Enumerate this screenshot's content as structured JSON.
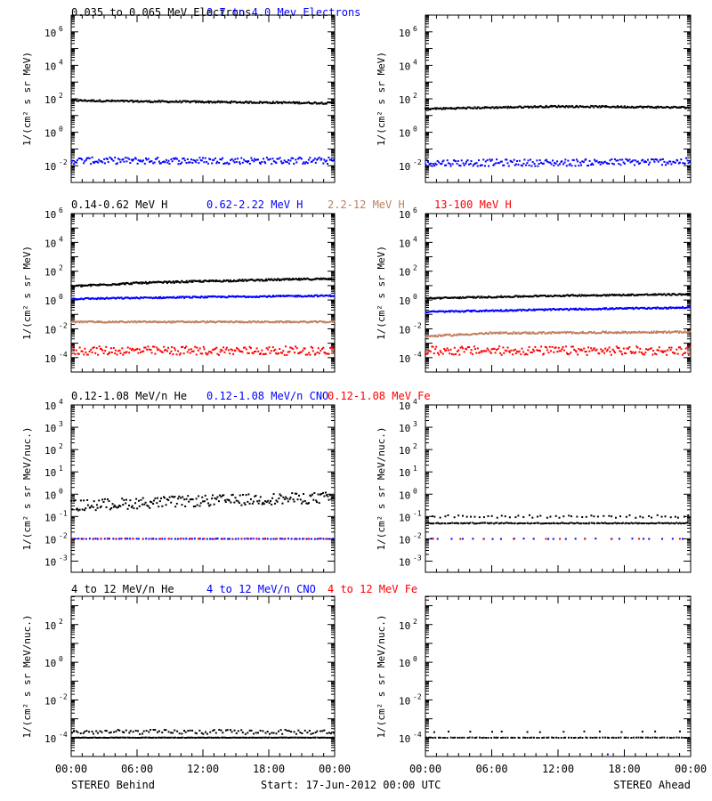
{
  "colors": {
    "black": "#000000",
    "blue": "#0000ff",
    "brown": "#c08060",
    "red": "#ff0000"
  },
  "footer": {
    "left": "STEREO Behind",
    "center": "Start: 17-Jun-2012 00:00 UTC",
    "right": "STEREO Ahead"
  },
  "x_axis": {
    "ticks": [
      "00:00",
      "06:00",
      "12:00",
      "18:00",
      "00:00"
    ],
    "range_hours": [
      0,
      24
    ]
  },
  "rows": [
    {
      "id": "electrons",
      "titles": [
        {
          "text": "0.035 to 0.065 MeV Electrons",
          "color": "black"
        },
        {
          "text": "0.7 to 4.0 Mev Electrons",
          "color": "blue"
        }
      ],
      "ylabel": "1/(cm² s sr MeV)",
      "y_log_range": [
        -3,
        7
      ],
      "y_ticks": [
        {
          "exp": 6,
          "label": "6"
        },
        {
          "exp": 4,
          "label": "4"
        },
        {
          "exp": 2,
          "label": "2"
        },
        {
          "exp": 0,
          "label": "0"
        },
        {
          "exp": -2,
          "label": "-2"
        }
      ]
    },
    {
      "id": "protons",
      "titles": [
        {
          "text": "0.14-0.62 MeV H",
          "color": "black"
        },
        {
          "text": "0.62-2.22 MeV H",
          "color": "blue"
        },
        {
          "text": "2.2-12 MeV H",
          "color": "brown"
        },
        {
          "text": "13-100 MeV H",
          "color": "red"
        }
      ],
      "ylabel": "1/(cm² s sr MeV)",
      "y_log_range": [
        -5,
        6
      ],
      "y_ticks": [
        {
          "exp": 6,
          "label": "6"
        },
        {
          "exp": 4,
          "label": "4"
        },
        {
          "exp": 2,
          "label": "2"
        },
        {
          "exp": 0,
          "label": "0"
        },
        {
          "exp": -2,
          "label": "-2"
        },
        {
          "exp": -4,
          "label": "-4"
        }
      ]
    },
    {
      "id": "heavy_low",
      "titles": [
        {
          "text": "0.12-1.08 MeV/n He",
          "color": "black"
        },
        {
          "text": "0.12-1.08 MeV/n CNO",
          "color": "blue"
        },
        {
          "text": "0.12-1.08 MeV Fe",
          "color": "red"
        }
      ],
      "ylabel": "1/(cm² s sr MeV/nuc.)",
      "y_log_range": [
        -3.5,
        4
      ],
      "y_ticks": [
        {
          "exp": 4,
          "label": "4"
        },
        {
          "exp": 3,
          "label": "3"
        },
        {
          "exp": 2,
          "label": "2"
        },
        {
          "exp": 1,
          "label": "1"
        },
        {
          "exp": 0,
          "label": "0"
        },
        {
          "exp": -1,
          "label": "-1"
        },
        {
          "exp": -2,
          "label": "-2"
        },
        {
          "exp": -3,
          "label": "-3"
        }
      ]
    },
    {
      "id": "heavy_high",
      "titles": [
        {
          "text": "4 to 12 MeV/n He",
          "color": "black"
        },
        {
          "text": "4 to 12 MeV/n CNO",
          "color": "blue"
        },
        {
          "text": "4 to 12 MeV Fe",
          "color": "red"
        }
      ],
      "ylabel": "1/(cm² s sr MeV/nuc.)",
      "y_log_range": [
        -5,
        3.5
      ],
      "y_ticks": [
        {
          "exp": 2,
          "label": "2"
        },
        {
          "exp": 0,
          "label": "0"
        },
        {
          "exp": -2,
          "label": "-2"
        },
        {
          "exp": -4,
          "label": "-4"
        }
      ]
    }
  ],
  "chart_data": [
    {
      "type": "scatter",
      "row": "electrons",
      "panel": "behind",
      "x_unit": "hours",
      "y_scale": "log",
      "ylim": [
        0.001,
        10000000
      ],
      "series": [
        {
          "color": "black",
          "x": [
            0,
            6,
            12,
            18,
            24
          ],
          "y": [
            80,
            70,
            65,
            60,
            55
          ],
          "spread": 0.05,
          "density": 260
        },
        {
          "color": "blue",
          "x": [
            0,
            12,
            24
          ],
          "y": [
            0.02,
            0.02,
            0.02
          ],
          "spread": 0.2,
          "density": 220
        }
      ]
    },
    {
      "type": "scatter",
      "row": "electrons",
      "panel": "ahead",
      "x_unit": "hours",
      "y_scale": "log",
      "ylim": [
        0.001,
        10000000
      ],
      "series": [
        {
          "color": "black",
          "x": [
            0,
            6,
            12,
            18,
            24
          ],
          "y": [
            25,
            30,
            35,
            33,
            30
          ],
          "spread": 0.05,
          "density": 260
        },
        {
          "color": "blue",
          "x": [
            0,
            12,
            24
          ],
          "y": [
            0.015,
            0.015,
            0.018
          ],
          "spread": 0.2,
          "density": 220
        }
      ]
    },
    {
      "type": "scatter",
      "row": "protons",
      "panel": "behind",
      "x_unit": "hours",
      "y_scale": "log",
      "ylim": [
        1e-05,
        1000000
      ],
      "series": [
        {
          "color": "black",
          "x": [
            0,
            6,
            12,
            18,
            24
          ],
          "y": [
            9,
            15,
            20,
            25,
            30
          ],
          "spread": 0.06,
          "density": 280
        },
        {
          "color": "blue",
          "x": [
            0,
            12,
            24
          ],
          "y": [
            1.2,
            1.6,
            2
          ],
          "spread": 0.05,
          "density": 260
        },
        {
          "color": "brown",
          "x": [
            0,
            12,
            24
          ],
          "y": [
            0.03,
            0.03,
            0.03
          ],
          "spread": 0.05,
          "density": 260
        },
        {
          "color": "red",
          "x": [
            0,
            12,
            24
          ],
          "y": [
            0.0003,
            0.0003,
            0.0003
          ],
          "spread": 0.3,
          "density": 220
        }
      ]
    },
    {
      "type": "scatter",
      "row": "protons",
      "panel": "ahead",
      "x_unit": "hours",
      "y_scale": "log",
      "ylim": [
        1e-05,
        1000000
      ],
      "series": [
        {
          "color": "black",
          "x": [
            0,
            12,
            24
          ],
          "y": [
            1.3,
            2,
            2.5
          ],
          "spread": 0.05,
          "density": 260
        },
        {
          "color": "blue",
          "x": [
            0,
            12,
            24
          ],
          "y": [
            0.15,
            0.22,
            0.3
          ],
          "spread": 0.05,
          "density": 260
        },
        {
          "color": "brown",
          "x": [
            0,
            6,
            24
          ],
          "y": [
            0.003,
            0.005,
            0.006
          ],
          "spread": 0.06,
          "density": 260
        },
        {
          "color": "red",
          "x": [
            0,
            12,
            24
          ],
          "y": [
            0.0003,
            0.0003,
            0.0003
          ],
          "spread": 0.3,
          "density": 220
        }
      ]
    },
    {
      "type": "scatter",
      "row": "heavy_low",
      "panel": "behind",
      "x_unit": "hours",
      "y_scale": "log",
      "ylim": [
        0.0003,
        10000
      ],
      "series": [
        {
          "color": "black",
          "x": [
            0,
            6,
            12,
            18,
            24
          ],
          "y": [
            0.3,
            0.4,
            0.5,
            0.6,
            0.7
          ],
          "spread": 0.25,
          "density": 220
        },
        {
          "color": "blue",
          "x": [
            0,
            12,
            24
          ],
          "y": [
            0.01,
            0.01,
            0.01
          ],
          "spread": 0.01,
          "density": 90
        },
        {
          "color": "red",
          "x": [
            0,
            12,
            24
          ],
          "y": [
            0.01,
            0.01,
            0.01
          ],
          "spread": 0.01,
          "density": 30
        }
      ]
    },
    {
      "type": "scatter",
      "row": "heavy_low",
      "panel": "ahead",
      "x_unit": "hours",
      "y_scale": "log",
      "ylim": [
        0.0003,
        10000
      ],
      "series": [
        {
          "color": "black",
          "x": [
            0,
            12,
            24
          ],
          "y": [
            0.05,
            0.05,
            0.05
          ],
          "spread": 0.02,
          "density": 160
        },
        {
          "color": "black",
          "x": [
            0,
            12,
            24
          ],
          "y": [
            0.1,
            0.1,
            0.1
          ],
          "spread": 0.06,
          "density": 60
        },
        {
          "color": "blue",
          "x": [
            0,
            12,
            24
          ],
          "y": [
            0.01,
            0.01,
            0.01
          ],
          "spread": 0.01,
          "density": 25
        },
        {
          "color": "red",
          "x": [
            0,
            12,
            24
          ],
          "y": [
            0.01,
            0.01,
            0.01
          ],
          "spread": 0.01,
          "density": 10
        }
      ]
    },
    {
      "type": "scatter",
      "row": "heavy_high",
      "panel": "behind",
      "x_unit": "hours",
      "y_scale": "log",
      "ylim": [
        1e-05,
        3000
      ],
      "series": [
        {
          "color": "black",
          "x": [
            0,
            12,
            24
          ],
          "y": [
            0.0001,
            0.0001,
            0.0001
          ],
          "spread": 0.01,
          "density": 180
        },
        {
          "color": "black",
          "x": [
            0,
            12,
            24
          ],
          "y": [
            0.0002,
            0.0002,
            0.0002
          ],
          "spread": 0.12,
          "density": 120
        }
      ]
    },
    {
      "type": "scatter",
      "row": "heavy_high",
      "panel": "ahead",
      "x_unit": "hours",
      "y_scale": "log",
      "ylim": [
        1e-05,
        3000
      ],
      "series": [
        {
          "color": "black",
          "x": [
            0,
            12,
            24
          ],
          "y": [
            0.0001,
            0.0001,
            0.0001
          ],
          "spread": 0.01,
          "density": 110
        },
        {
          "color": "black",
          "x": [
            0,
            12,
            24
          ],
          "y": [
            0.0002,
            0.0002,
            0.0002
          ],
          "spread": 0.03,
          "density": 14
        },
        {
          "color": "blue",
          "x": [
            16.5
          ],
          "y": [
            1.3e-05
          ],
          "spread": 0.0,
          "density": 1
        }
      ]
    }
  ]
}
